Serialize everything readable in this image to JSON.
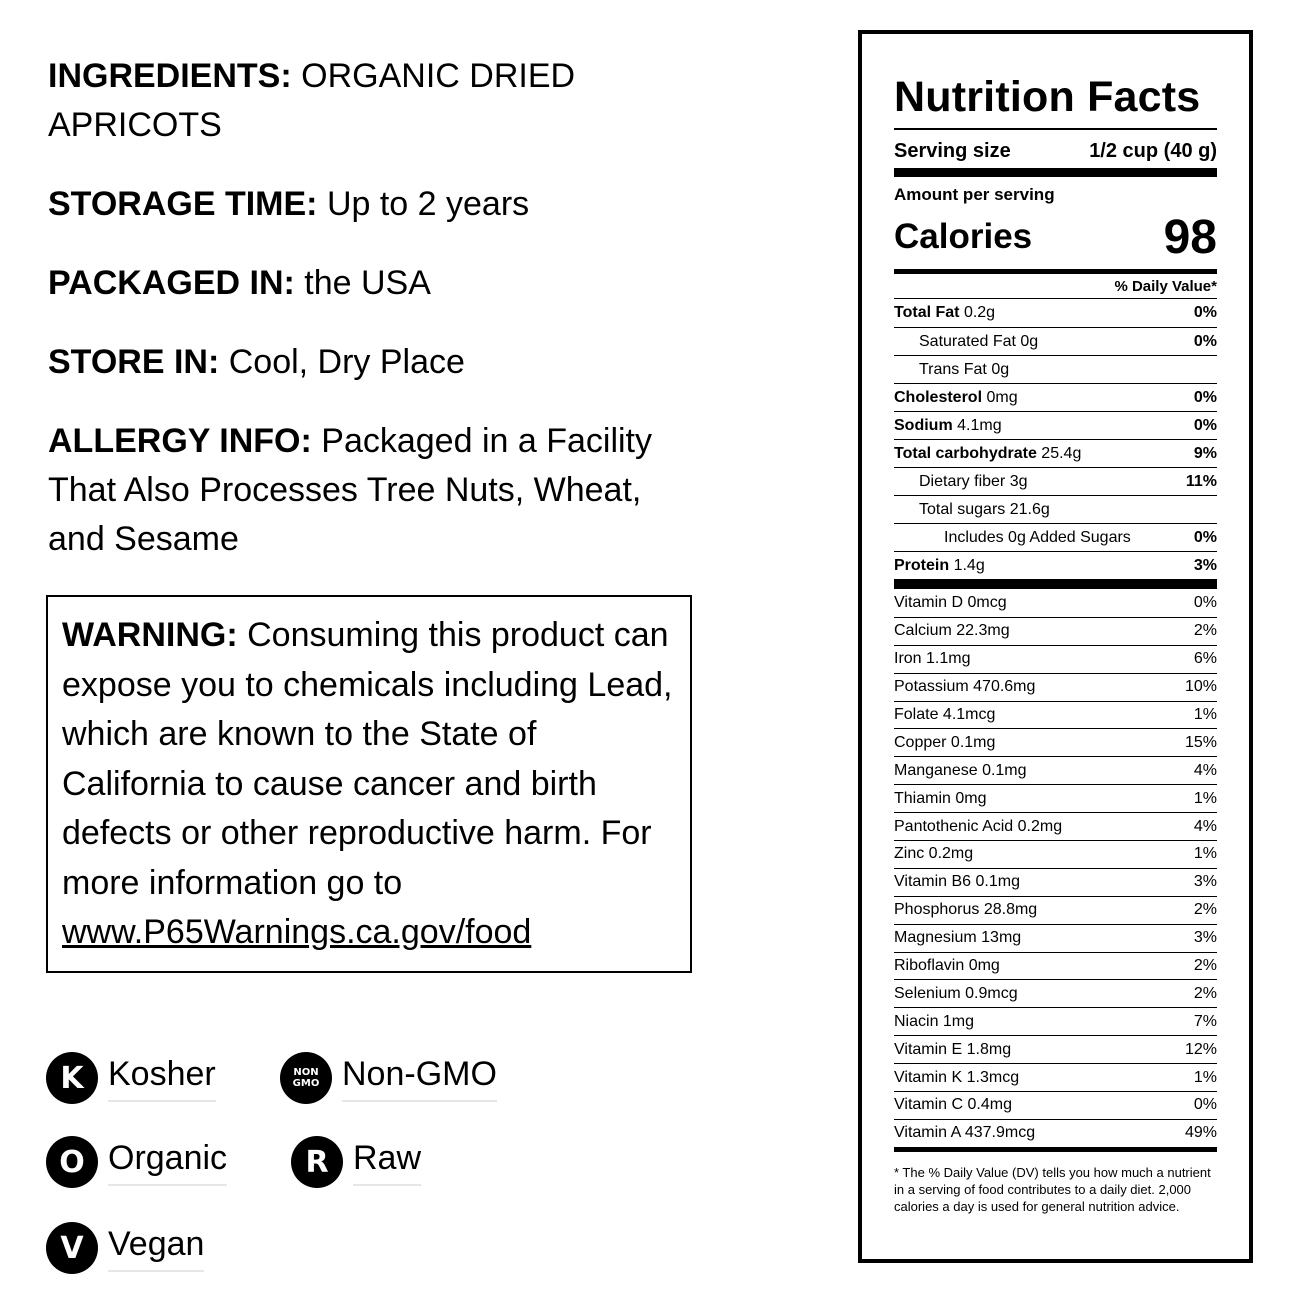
{
  "left": {
    "ingredients": {
      "label": "INGREDIENTS:",
      "value": "ORGANIC DRIED APRICOTS"
    },
    "storage_time": {
      "label": "STORAGE TIME:",
      "value": "Up to 2 years"
    },
    "packaged_in": {
      "label": "PACKAGED IN:",
      "value": "the USA"
    },
    "store_in": {
      "label": "STORE IN:",
      "value": "Cool, Dry Place"
    },
    "allergy": {
      "label": "ALLERGY INFO:",
      "value": "Packaged in a Facility That Also Processes Tree Nuts, Wheat, and Sesame"
    }
  },
  "warning": {
    "label": "WARNING:",
    "text": "Consuming this product can expose you to chemicals including Lead, which are known to the State of California to cause cancer and birth defects or other reproductive harm. For more information go to",
    "link": "www.P65Warnings.ca.gov/food"
  },
  "badges": [
    {
      "icon": "kosher-icon",
      "glyph": "K",
      "label": "Kosher"
    },
    {
      "icon": "non-gmo-icon",
      "glyph": "NON GMO",
      "label": "Non-GMO"
    },
    {
      "icon": "organic-icon",
      "glyph": "O",
      "label": "Organic"
    },
    {
      "icon": "raw-icon",
      "glyph": "R",
      "label": "Raw"
    },
    {
      "icon": "vegan-icon",
      "glyph": "V",
      "label": "Vegan"
    }
  ],
  "nutrition": {
    "title": "Nutrition Facts",
    "serving_label": "Serving size",
    "serving_value": "1/2 cup (40 g)",
    "amount_label": "Amount per serving",
    "calories_label": "Calories",
    "calories_value": "98",
    "dv_header": "% Daily Value*",
    "rows": [
      {
        "name": "Total Fat",
        "amount": "0.2g",
        "dv": "0%",
        "bold": true,
        "indent": 0
      },
      {
        "name": "Saturated Fat 0g",
        "amount": "",
        "dv": "0%",
        "bold": false,
        "indent": 1
      },
      {
        "name": "Trans Fat 0g",
        "amount": "",
        "dv": "",
        "bold": false,
        "indent": 1
      },
      {
        "name": "Cholesterol",
        "amount": "0mg",
        "dv": "0%",
        "bold": true,
        "indent": 0
      },
      {
        "name": "Sodium",
        "amount": "4.1mg",
        "dv": "0%",
        "bold": true,
        "indent": 0
      },
      {
        "name": "Total carbohydrate",
        "amount": "25.4g",
        "dv": "9%",
        "bold": true,
        "indent": 0
      },
      {
        "name": "Dietary fiber 3g",
        "amount": "",
        "dv": "11%",
        "bold": false,
        "indent": 1
      },
      {
        "name": "Total sugars 21.6g",
        "amount": "",
        "dv": "",
        "bold": false,
        "indent": 1
      },
      {
        "name": "Includes 0g Added Sugars",
        "amount": "",
        "dv": "0%",
        "bold": false,
        "indent": 2
      },
      {
        "name": "Protein",
        "amount": "1.4g",
        "dv": "3%",
        "bold": true,
        "indent": 0
      }
    ],
    "vitamins": [
      {
        "name": "Vitamin D 0mcg",
        "dv": "0%"
      },
      {
        "name": "Calcium 22.3mg",
        "dv": "2%"
      },
      {
        "name": "Iron 1.1mg",
        "dv": "6%"
      },
      {
        "name": "Potassium 470.6mg",
        "dv": "10%"
      },
      {
        "name": "Folate 4.1mcg",
        "dv": "1%"
      },
      {
        "name": "Copper 0.1mg",
        "dv": "15%"
      },
      {
        "name": "Manganese 0.1mg",
        "dv": "4%"
      },
      {
        "name": "Thiamin 0mg",
        "dv": "1%"
      },
      {
        "name": "Pantothenic Acid 0.2mg",
        "dv": "4%"
      },
      {
        "name": "Zinc 0.2mg",
        "dv": "1%"
      },
      {
        "name": "Vitamin B6 0.1mg",
        "dv": "3%"
      },
      {
        "name": "Phosphorus 28.8mg",
        "dv": "2%"
      },
      {
        "name": "Magnesium 13mg",
        "dv": "3%"
      },
      {
        "name": "Riboflavin 0mg",
        "dv": "2%"
      },
      {
        "name": "Selenium 0.9mcg",
        "dv": "2%"
      },
      {
        "name": "Niacin 1mg",
        "dv": "7%"
      },
      {
        "name": "Vitamin E 1.8mg",
        "dv": "12%"
      },
      {
        "name": "Vitamin K 1.3mcg",
        "dv": "1%"
      },
      {
        "name": "Vitamin C 0.4mg",
        "dv": "0%"
      },
      {
        "name": "Vitamin A 437.9mcg",
        "dv": "49%"
      }
    ],
    "footnote": "* The % Daily Value (DV) tells you how much a nutrient in a serving of food contributes to a daily diet. 2,000 calories a day is used for general nutrition advice."
  }
}
